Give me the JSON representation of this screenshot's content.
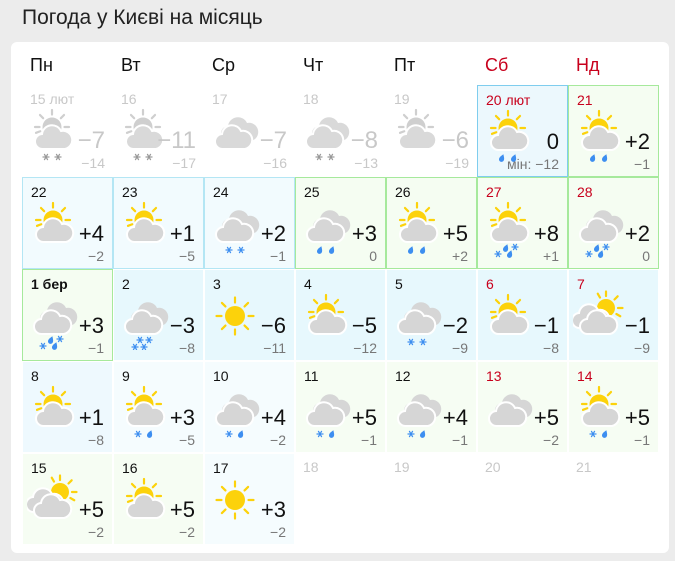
{
  "title": "Погода у Києві на місяць",
  "weekdays": [
    {
      "label": "Пн",
      "weekend": false
    },
    {
      "label": "Вт",
      "weekend": false
    },
    {
      "label": "Ср",
      "weekend": false
    },
    {
      "label": "Чт",
      "weekend": false
    },
    {
      "label": "Пт",
      "weekend": false
    },
    {
      "label": "Сб",
      "weekend": true
    },
    {
      "label": "Нд",
      "weekend": true
    }
  ],
  "colors": {
    "sun": "#fcd20b",
    "cloud": "#d6d6d6",
    "precip": "#3d8ef0",
    "weekend": "#c8001c"
  },
  "weeks": [
    [
      {
        "date": "15 лют",
        "hi": "−7",
        "lo": "−14",
        "icon": "sun-cloud",
        "precip": "snow2",
        "tone": "past"
      },
      {
        "date": "16",
        "hi": "−11",
        "lo": "−17",
        "icon": "sun-cloud",
        "precip": "snow2",
        "tone": "past"
      },
      {
        "date": "17",
        "hi": "−7",
        "lo": "−16",
        "icon": "clouds",
        "precip": "",
        "tone": "past"
      },
      {
        "date": "18",
        "hi": "−8",
        "lo": "−13",
        "icon": "clouds",
        "precip": "snow2",
        "tone": "past"
      },
      {
        "date": "19",
        "hi": "−6",
        "lo": "−19",
        "icon": "sun-cloud",
        "precip": "",
        "tone": "past"
      },
      {
        "date": "20 лют",
        "hi": "0",
        "lo": "мін: −12",
        "icon": "sun-cloud",
        "precip": "rain2",
        "tone": "today",
        "weekend": true
      },
      {
        "date": "21",
        "hi": "+2",
        "lo": "−1",
        "icon": "sun-cloud",
        "precip": "rain2",
        "tone": "green-b",
        "weekend": true
      }
    ],
    [
      {
        "date": "22",
        "hi": "+4",
        "lo": "−2",
        "icon": "sun-cloud",
        "precip": "",
        "tone": "blue-b"
      },
      {
        "date": "23",
        "hi": "+1",
        "lo": "−5",
        "icon": "sun-cloud",
        "precip": "",
        "tone": "blue-b"
      },
      {
        "date": "24",
        "hi": "+2",
        "lo": "−1",
        "icon": "clouds",
        "precip": "snow2",
        "tone": "blue-b"
      },
      {
        "date": "25",
        "hi": "+3",
        "lo": "0",
        "icon": "clouds",
        "precip": "rain2",
        "tone": "green-b"
      },
      {
        "date": "26",
        "hi": "+5",
        "lo": "+2",
        "icon": "sun-cloud",
        "precip": "rain2",
        "tone": "green-b"
      },
      {
        "date": "27",
        "hi": "+8",
        "lo": "+1",
        "icon": "sun-cloud",
        "precip": "rain-snow",
        "tone": "green-b",
        "weekend": true
      },
      {
        "date": "28",
        "hi": "+2",
        "lo": "0",
        "icon": "clouds",
        "precip": "rain-snow",
        "tone": "green-b",
        "weekend": true
      }
    ],
    [
      {
        "date": "1 бер",
        "hi": "+3",
        "lo": "−1",
        "icon": "clouds",
        "precip": "rain-snow",
        "tone": "green-b",
        "bold": true
      },
      {
        "date": "2",
        "hi": "−3",
        "lo": "−8",
        "icon": "clouds",
        "precip": "snow4",
        "tone": "blue"
      },
      {
        "date": "3",
        "hi": "−6",
        "lo": "−11",
        "icon": "sun",
        "precip": "",
        "tone": "blue"
      },
      {
        "date": "4",
        "hi": "−5",
        "lo": "−12",
        "icon": "sun-cloud",
        "precip": "",
        "tone": "blue"
      },
      {
        "date": "5",
        "hi": "−2",
        "lo": "−9",
        "icon": "clouds",
        "precip": "snow2",
        "tone": "blue"
      },
      {
        "date": "6",
        "hi": "−1",
        "lo": "−8",
        "icon": "sun-cloud",
        "precip": "",
        "tone": "blue",
        "weekend": true
      },
      {
        "date": "7",
        "hi": "−1",
        "lo": "−9",
        "icon": "cloud-sun",
        "precip": "",
        "tone": "blue",
        "weekend": true
      }
    ],
    [
      {
        "date": "8",
        "hi": "+1",
        "lo": "−8",
        "icon": "sun-cloud",
        "precip": "",
        "tone": "blue2"
      },
      {
        "date": "9",
        "hi": "+3",
        "lo": "−5",
        "icon": "sun-cloud",
        "precip": "snow-rain",
        "tone": "blue3"
      },
      {
        "date": "10",
        "hi": "+4",
        "lo": "−2",
        "icon": "clouds",
        "precip": "snow-rain",
        "tone": "blue3"
      },
      {
        "date": "11",
        "hi": "+5",
        "lo": "−1",
        "icon": "clouds",
        "precip": "snow-rain",
        "tone": "green"
      },
      {
        "date": "12",
        "hi": "+4",
        "lo": "−1",
        "icon": "clouds",
        "precip": "snow-rain",
        "tone": "green"
      },
      {
        "date": "13",
        "hi": "+5",
        "lo": "−2",
        "icon": "clouds",
        "precip": "",
        "tone": "green",
        "weekend": true
      },
      {
        "date": "14",
        "hi": "+5",
        "lo": "−1",
        "icon": "sun-cloud",
        "precip": "snow-rain",
        "tone": "green",
        "weekend": true
      }
    ],
    [
      {
        "date": "15",
        "hi": "+5",
        "lo": "−2",
        "icon": "cloud-sun",
        "precip": "",
        "tone": "green"
      },
      {
        "date": "16",
        "hi": "+5",
        "lo": "−2",
        "icon": "sun-cloud",
        "precip": "",
        "tone": "green"
      },
      {
        "date": "17",
        "hi": "+3",
        "lo": "−2",
        "icon": "sun",
        "precip": "",
        "tone": "blue3"
      },
      {
        "date": "18",
        "tone": "empty"
      },
      {
        "date": "19",
        "tone": "empty"
      },
      {
        "date": "20",
        "tone": "empty"
      },
      {
        "date": "21",
        "tone": "empty"
      }
    ]
  ]
}
